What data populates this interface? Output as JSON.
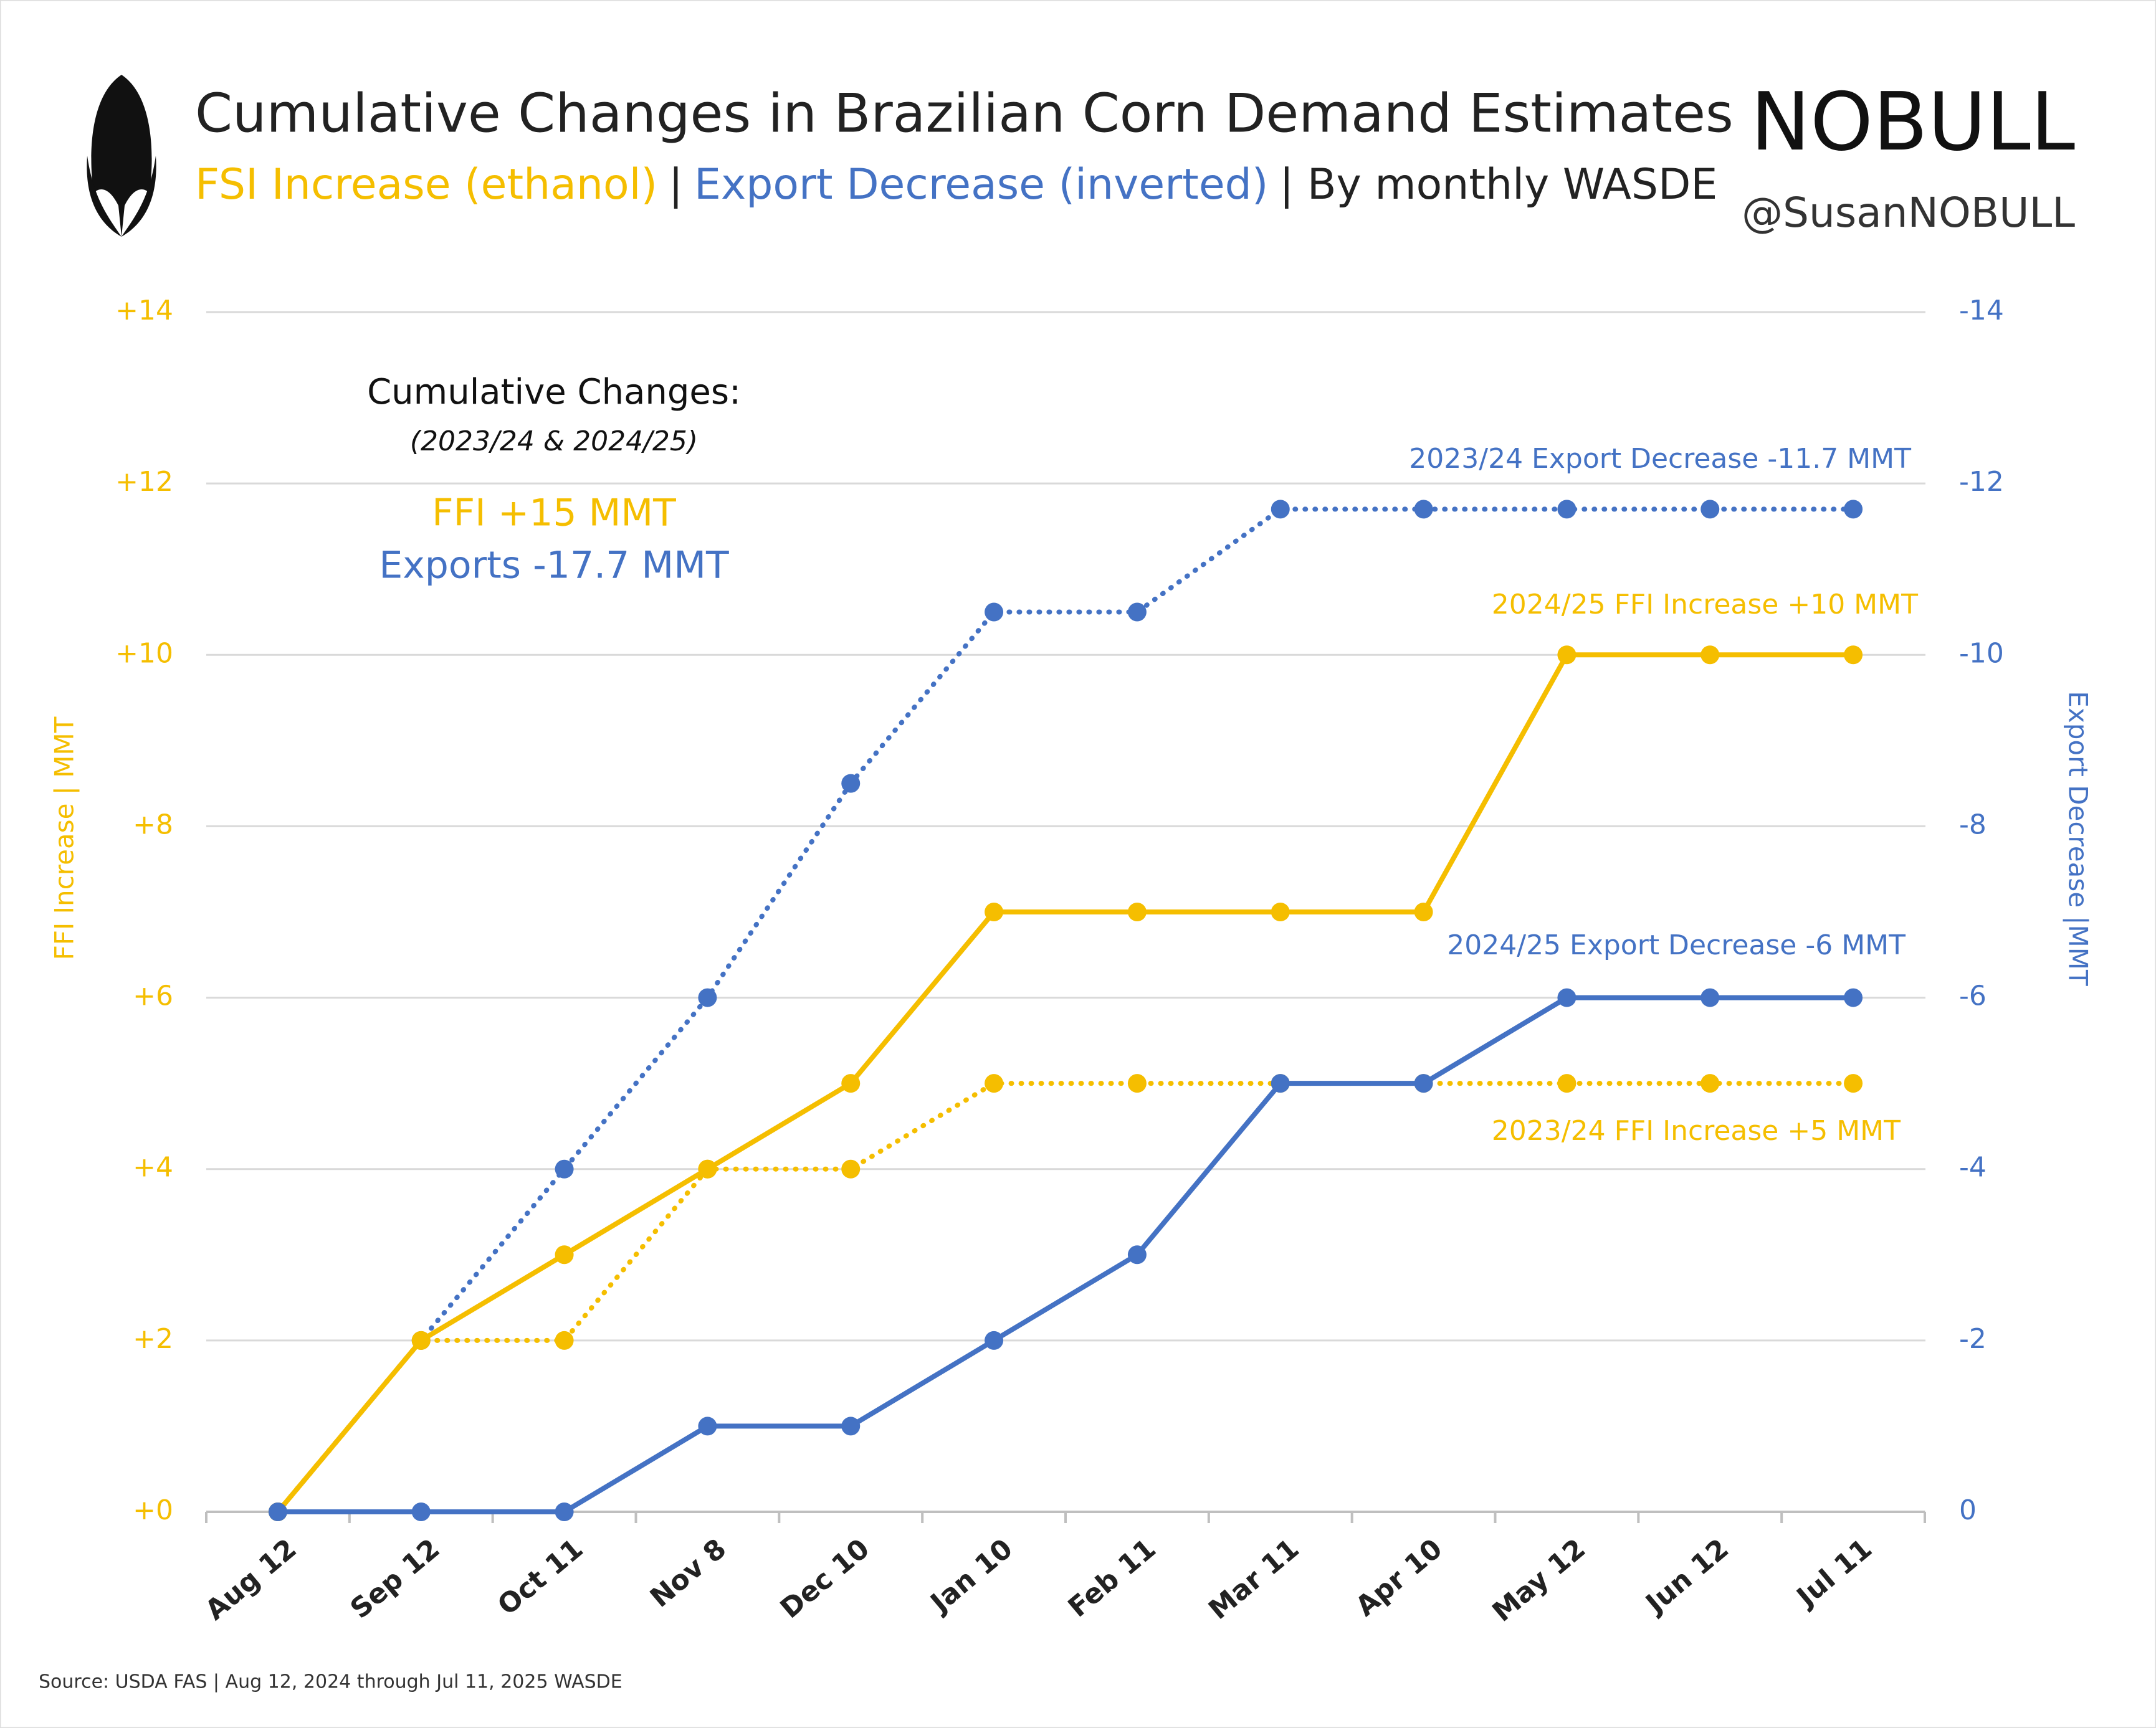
{
  "chart_data": {
    "type": "line",
    "title": "Cumulative Changes in Brazilian Corn Demand Estimates",
    "subtitle": [
      {
        "text": "FSI Increase (ethanol)",
        "color": "#f5be00"
      },
      {
        "text": "|",
        "color": "#222222"
      },
      {
        "text": "Export Decrease (inverted)",
        "color": "#4472c4"
      },
      {
        "text": "| By monthly WASDE",
        "color": "#222222"
      }
    ],
    "brand": "NOBULL",
    "handle": "@SusanNOBULL",
    "annotation": {
      "heading": "Cumulative Changes:",
      "period": "(2023/24 & 2024/25)",
      "ffi": "FFI +15 MMT",
      "exports": "Exports -17.7 MMT"
    },
    "y_label": "FFI Increase | MMT",
    "y2_label": "Export Decrease |MMT",
    "y_color": "#f5be00",
    "y2_color": "#4472c4",
    "source": "Source: USDA FAS | Aug 12, 2024 through Jul 11, 2025 WASDE",
    "categories": [
      "Aug 12",
      "Sep 12",
      "Oct 11",
      "Nov 8",
      "Dec 10",
      "Jan 10",
      "Feb 11",
      "Mar 11",
      "Apr 10",
      "May 12",
      "Jun 12",
      "Jul 11"
    ],
    "ylim": [
      0,
      14
    ],
    "yticks": [
      {
        "value": 0,
        "label": "+0"
      },
      {
        "value": 2,
        "label": "+2"
      },
      {
        "value": 4,
        "label": "+4"
      },
      {
        "value": 6,
        "label": "+6"
      },
      {
        "value": 8,
        "label": "+8"
      },
      {
        "value": 10,
        "label": "+10"
      },
      {
        "value": 12,
        "label": "+12"
      },
      {
        "value": 14,
        "label": "+14"
      }
    ],
    "y2lim": [
      0,
      -14
    ],
    "y2ticks": [
      0,
      -2,
      -4,
      -6,
      -8,
      -10,
      -12,
      -14
    ],
    "grid": true,
    "series": [
      {
        "name": "2023/24 Export Decrease -11.7 MMT",
        "color": "#4472c4",
        "style": "dotted",
        "axis": "y2",
        "values": [
          0,
          -2,
          -4,
          -6,
          -8.5,
          -10.5,
          -10.5,
          -11.7,
          -11.7,
          -11.7,
          -11.7,
          -11.7
        ]
      },
      {
        "name": "2024/25 FFI Increase +10 MMT",
        "color": "#f5be00",
        "style": "solid",
        "values": [
          0,
          2,
          3,
          4,
          5,
          7,
          7,
          7,
          7,
          10,
          10,
          10
        ]
      },
      {
        "name": "2023/24 FFI Increase +5 MMT",
        "color": "#f5be00",
        "style": "dotted",
        "values": [
          0,
          2,
          2,
          4,
          4,
          5,
          5,
          5,
          5,
          5,
          5,
          5
        ]
      },
      {
        "name": "2024/25 Export Decrease -6 MMT",
        "color": "#4472c4",
        "style": "solid",
        "axis": "y2",
        "values": [
          0,
          0,
          0,
          -1,
          -1,
          -2,
          -3,
          -5,
          -5,
          -6,
          -6,
          -6
        ]
      }
    ]
  }
}
